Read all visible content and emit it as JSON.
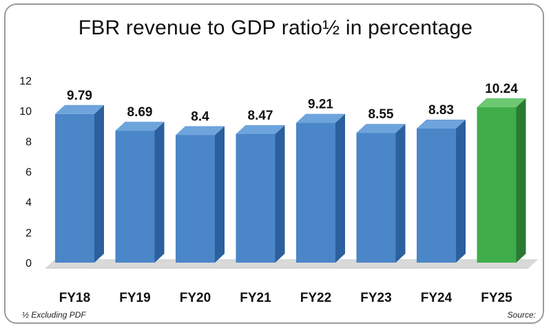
{
  "chart_data": {
    "type": "bar",
    "title": "FBR revenue to GDP ratio½ in percentage",
    "categories": [
      "FY18",
      "FY19",
      "FY20",
      "FY21",
      "FY22",
      "FY23",
      "FY24",
      "FY25"
    ],
    "values": [
      9.79,
      8.69,
      8.4,
      8.47,
      9.21,
      8.55,
      8.83,
      10.24
    ],
    "value_labels": [
      "9.79",
      "8.69",
      "8.4",
      "8.47",
      "9.21",
      "8.55",
      "8.83",
      "10.24"
    ],
    "highlight_index": 7,
    "ylim": [
      0,
      12
    ],
    "yticks": [
      0,
      2,
      4,
      6,
      8,
      10,
      12
    ],
    "xlabel": "",
    "ylabel": "",
    "colors": {
      "bar_front": "#4a86c8",
      "bar_top": "#6ea4dc",
      "bar_side": "#2c5f9e",
      "highlight_front": "#3fae4a",
      "highlight_top": "#6cc872",
      "highlight_side": "#2a7a33",
      "floor": "#d9d9d9",
      "axis": "#bdbdbd"
    }
  },
  "footnote": "½ Excluding PDF",
  "source": "Source:"
}
